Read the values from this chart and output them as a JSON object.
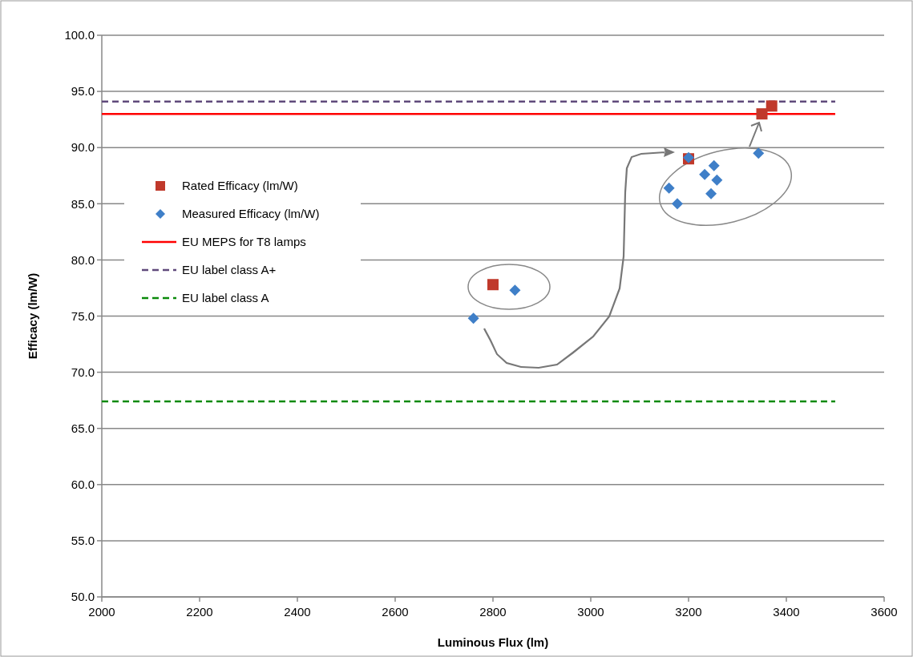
{
  "chart_data": {
    "type": "scatter",
    "xlabel": "Luminous Flux (lm)",
    "ylabel": "Efficacy (lm/W)",
    "xlim": [
      2000,
      3600
    ],
    "xticks": [
      2000,
      2200,
      2400,
      2600,
      2800,
      3000,
      3200,
      3400,
      3600
    ],
    "ylim": [
      50,
      100
    ],
    "yticks": [
      {
        "value": 50,
        "label": "50.0"
      },
      {
        "value": 55,
        "label": "55.0"
      },
      {
        "value": 60,
        "label": "60.0"
      },
      {
        "value": 65,
        "label": "65.0"
      },
      {
        "value": 70,
        "label": "70.0"
      },
      {
        "value": 75,
        "label": "75.0"
      },
      {
        "value": 80,
        "label": "80.0"
      },
      {
        "value": 85,
        "label": "85.0"
      },
      {
        "value": 90,
        "label": "90.0"
      },
      {
        "value": 95,
        "label": "95.0"
      },
      {
        "value": 100,
        "label": "100.0"
      }
    ],
    "grid": "y",
    "legend": "left",
    "series": [
      {
        "name": "Rated Efficacy (lm/W)",
        "marker": "square",
        "color": "#c0392b",
        "x": [
          2800,
          3200,
          3350,
          3370
        ],
        "values": [
          77.8,
          89.0,
          93.0,
          93.7
        ]
      },
      {
        "name": "Measured Efficacy (lm/W)",
        "marker": "diamond",
        "color": "#3f7fc8",
        "x": [
          2760,
          2845,
          3200,
          3160,
          3177,
          3233,
          3252,
          3258,
          3246,
          3343
        ],
        "values": [
          74.8,
          77.3,
          89.1,
          86.4,
          85.0,
          87.6,
          88.4,
          87.1,
          85.9,
          89.5
        ]
      },
      {
        "name": "EU MEPS for T8 lamps",
        "type": "line",
        "line_style": "solid",
        "color": "#ff0000",
        "x": [
          2000,
          3500
        ],
        "values": [
          93.0,
          93.0
        ]
      },
      {
        "name": "EU label class A+",
        "type": "line",
        "line_style": "dashed",
        "color": "#604a7b",
        "x": [
          2000,
          3500
        ],
        "values": [
          94.1,
          94.1
        ]
      },
      {
        "name": "EU label class A",
        "type": "line",
        "line_style": "dashed",
        "color": "#0a8a0a",
        "x": [
          2000,
          3500
        ],
        "values": [
          67.4,
          67.4
        ]
      }
    ]
  }
}
